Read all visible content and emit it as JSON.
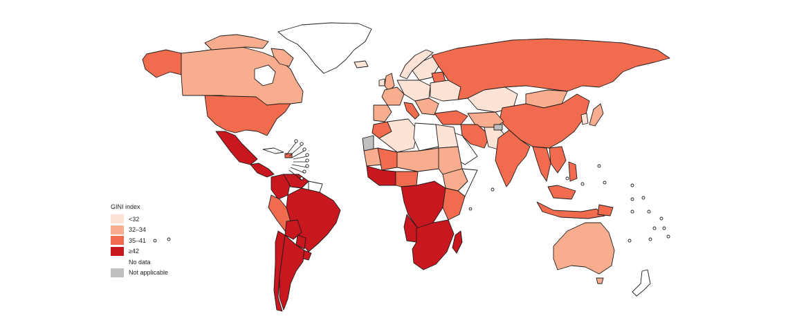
{
  "legend": {
    "title": "GINI index",
    "items": [
      {
        "label": "<32",
        "color": "#fde2d6"
      },
      {
        "label": "32–34",
        "color": "#f8ae8e"
      },
      {
        "label": "35–41",
        "color": "#f16c4f"
      },
      {
        "label": "≥42",
        "color": "#c8171e"
      },
      {
        "label": "No data",
        "color": "#ffffff"
      },
      {
        "label": "Not applicable",
        "color": "#bfbfbf"
      }
    ]
  },
  "colors": {
    "lt32": "#fde2d6",
    "c32_34": "#f8ae8e",
    "c35_41": "#f16c4f",
    "ge42": "#c8171e",
    "nodata": "#ffffff",
    "na": "#bfbfbf"
  }
}
